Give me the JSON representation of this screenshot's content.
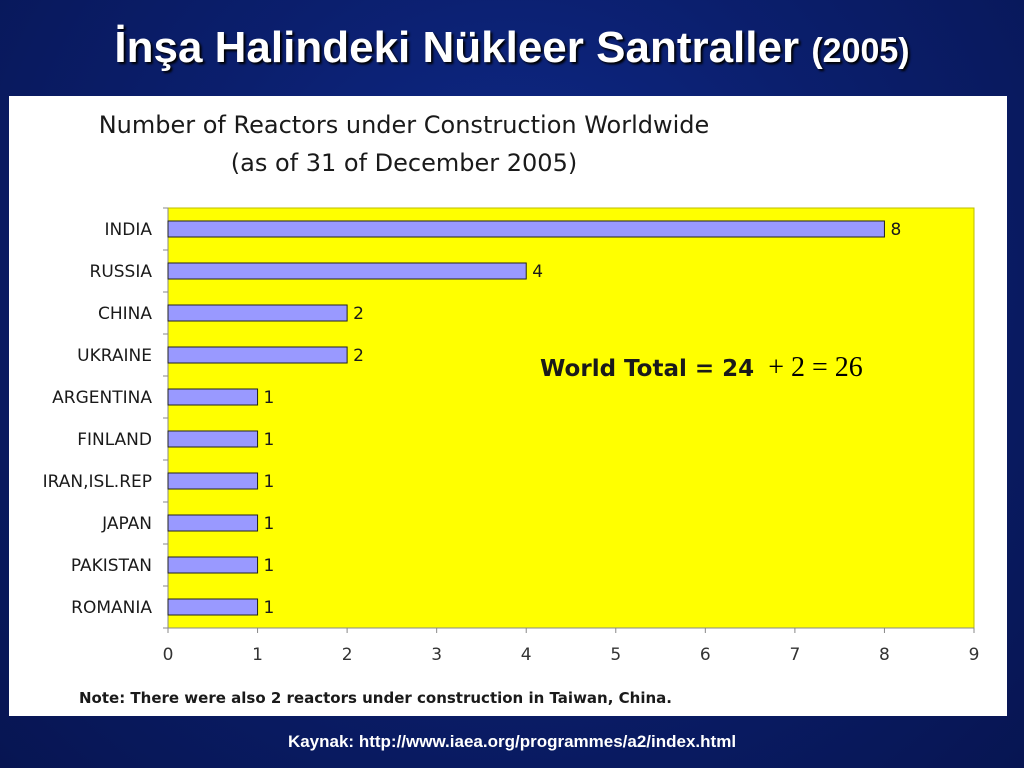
{
  "slide": {
    "title": "İnşa Halindeki Nükleer Santraller",
    "title_year": "(2005)",
    "source": "Kaynak:  http://www.iaea.org/programmes/a2/index.html"
  },
  "chart_data": {
    "type": "bar",
    "orientation": "horizontal",
    "title": "Number of Reactors under Construction Worldwide",
    "subtitle": "(as of 31 of December 2005)",
    "categories": [
      "INDIA",
      "RUSSIA",
      "CHINA",
      "UKRAINE",
      "ARGENTINA",
      "FINLAND",
      "IRAN,ISL.REP",
      "JAPAN",
      "PAKISTAN",
      "ROMANIA"
    ],
    "values": [
      8,
      4,
      2,
      2,
      1,
      1,
      1,
      1,
      1,
      1
    ],
    "xlim": [
      0,
      9
    ],
    "xticks": [
      0,
      1,
      2,
      3,
      4,
      5,
      6,
      7,
      8,
      9
    ],
    "xlabel": "",
    "ylabel": "",
    "grid": false,
    "legend": "none",
    "plot_background": "#ffff00",
    "bar_color": "#9999ff",
    "annotation": "World Total = 24",
    "annotation_extra": "+ 2 = 26",
    "note": "Note: There were also 2 reactors under construction in Taiwan, China."
  }
}
